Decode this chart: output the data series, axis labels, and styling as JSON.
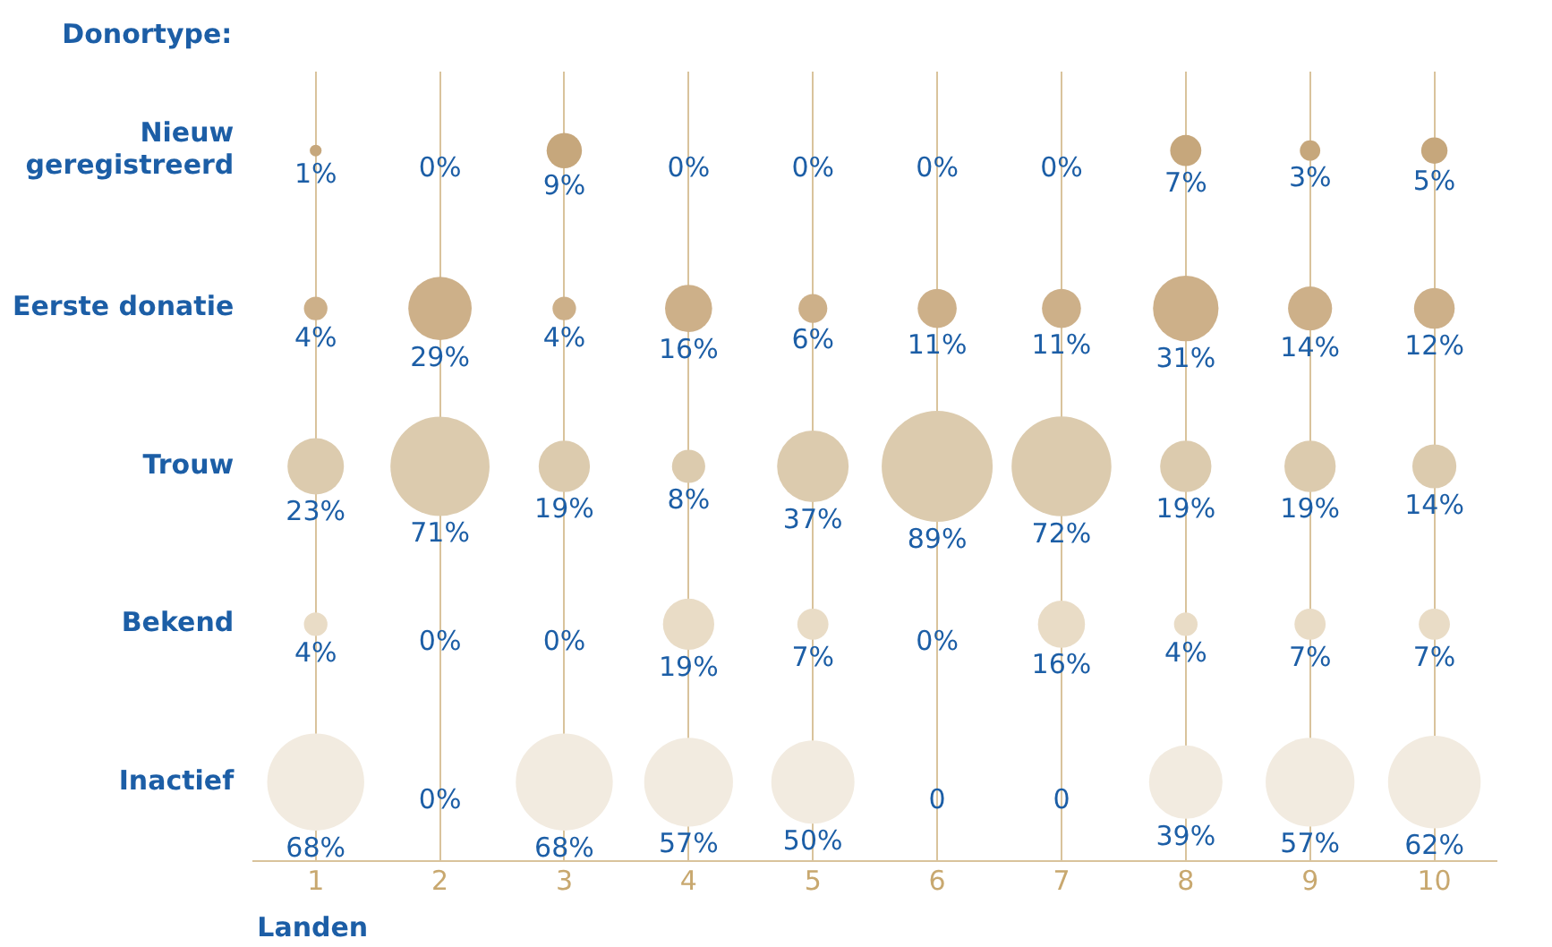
{
  "chart_data": {
    "type": "bubble",
    "orientation": "horizontal",
    "ylabel": "Donortype:",
    "xlabel": "Landen",
    "categories": [
      "Nieuw\ngeregistreerd",
      "Eerste donatie",
      "Trouw",
      "Bekend",
      "Inactief"
    ],
    "xlim": [
      0.5,
      10.5
    ],
    "xticks": [
      1,
      2,
      3,
      4,
      5,
      6,
      7,
      8,
      9,
      10
    ],
    "grid": "x",
    "legend": false,
    "series": [
      {
        "colors": [
          "#c6a77c",
          "#cdb089",
          "#dccbae",
          "#e9dcc6",
          "#f2ebe0"
        ],
        "values": [
          1,
          1,
          1,
          1,
          1
        ],
        "sizes": [
          1,
          4,
          23,
          4,
          68
        ],
        "value_labels": [
          "1%",
          "4%",
          "23%",
          "4%",
          "68%"
        ]
      },
      {
        "colors": [
          "#c6a77c",
          "#cdb089",
          "#dccbae",
          "#e9dcc6",
          "#f2ebe0"
        ],
        "values": [
          null,
          2,
          2,
          null,
          null
        ],
        "sizes": [
          null,
          29,
          71,
          null,
          null
        ],
        "value_labels": [
          "0%",
          "29%",
          "71%",
          "0%",
          "0%"
        ]
      },
      {
        "colors": [
          "#c6a77c",
          "#cdb089",
          "#dccbae",
          "#e9dcc6",
          "#f2ebe0"
        ],
        "values": [
          3,
          3,
          3,
          null,
          3
        ],
        "sizes": [
          9,
          4,
          19,
          null,
          68
        ],
        "value_labels": [
          "9%",
          "4%",
          "19%",
          "0%",
          "68%"
        ]
      },
      {
        "colors": [
          "#c6a77c",
          "#cdb089",
          "#dccbae",
          "#e9dcc6",
          "#f2ebe0"
        ],
        "values": [
          null,
          4,
          4,
          4,
          4
        ],
        "sizes": [
          null,
          16,
          8,
          19,
          57
        ],
        "value_labels": [
          "0%",
          "16%",
          "8%",
          "19%",
          "57%"
        ]
      },
      {
        "colors": [
          "#c6a77c",
          "#cdb089",
          "#dccbae",
          "#e9dcc6",
          "#f2ebe0"
        ],
        "values": [
          null,
          5,
          5,
          5,
          5
        ],
        "sizes": [
          null,
          6,
          37,
          7,
          50
        ],
        "value_labels": [
          "0%",
          "6%",
          "37%",
          "7%",
          "50%"
        ]
      },
      {
        "colors": [
          "#c6a77c",
          "#cdb089",
          "#dccbae",
          "#e9dcc6",
          "#f2ebe0"
        ],
        "values": [
          null,
          6,
          6,
          null,
          null
        ],
        "sizes": [
          null,
          11,
          89,
          null,
          null
        ],
        "value_labels": [
          "0%",
          "11%",
          "89%",
          "0%",
          "0"
        ]
      },
      {
        "colors": [
          "#c6a77c",
          "#cdb089",
          "#dccbae",
          "#e9dcc6",
          "#f2ebe0"
        ],
        "values": [
          null,
          7,
          7,
          7,
          null
        ],
        "sizes": [
          null,
          11,
          72,
          16,
          null
        ],
        "value_labels": [
          "0%",
          "11%",
          "72%",
          "16%",
          "0"
        ]
      },
      {
        "colors": [
          "#c6a77c",
          "#cdb089",
          "#dccbae",
          "#e9dcc6",
          "#f2ebe0"
        ],
        "values": [
          8,
          8,
          8,
          8,
          8
        ],
        "sizes": [
          7,
          31,
          19,
          4,
          39
        ],
        "value_labels": [
          "7%",
          "31%",
          "19%",
          "4%",
          "39%"
        ]
      },
      {
        "colors": [
          "#c6a77c",
          "#cdb089",
          "#dccbae",
          "#e9dcc6",
          "#f2ebe0"
        ],
        "values": [
          9,
          9,
          9,
          9,
          9
        ],
        "sizes": [
          3,
          14,
          19,
          7,
          57
        ],
        "value_labels": [
          "3%",
          "14%",
          "19%",
          "7%",
          "57%"
        ]
      },
      {
        "colors": [
          "#c6a77c",
          "#cdb089",
          "#dccbae",
          "#e9dcc6",
          "#f2ebe0"
        ],
        "values": [
          10,
          10,
          10,
          10,
          10
        ],
        "sizes": [
          5,
          12,
          14,
          7,
          62
        ],
        "value_labels": [
          "5%",
          "12%",
          "14%",
          "7%",
          "62%"
        ]
      }
    ]
  }
}
